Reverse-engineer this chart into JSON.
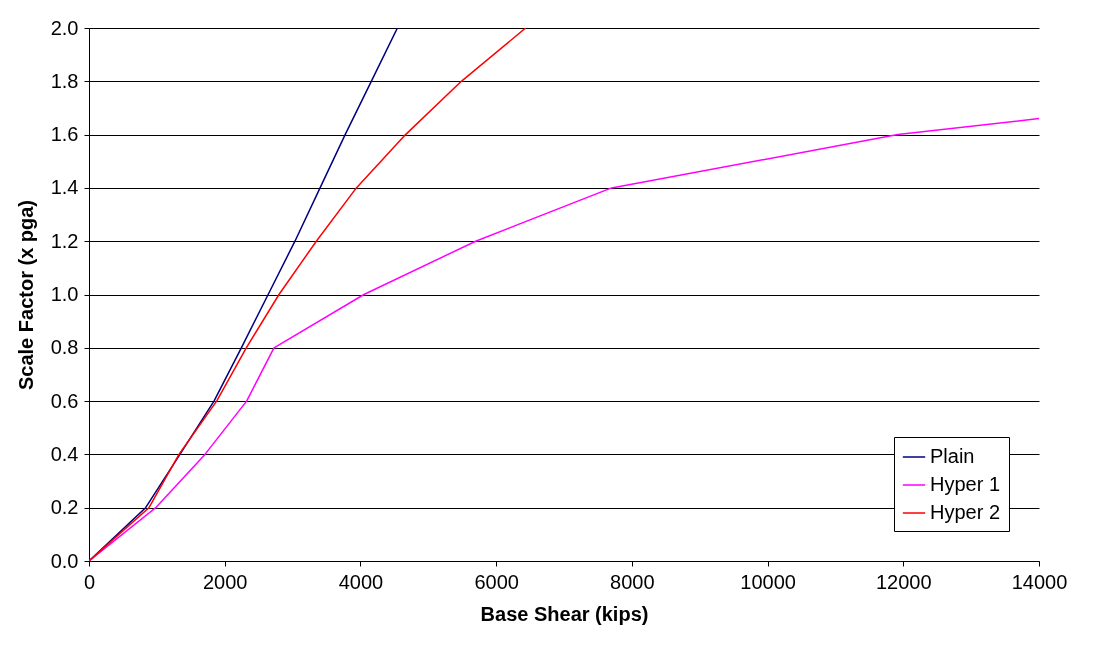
{
  "chart_data": {
    "type": "line",
    "xlabel": "Base Shear (kips)",
    "ylabel": "Scale Factor (x pga)",
    "xlim": [
      0,
      14000
    ],
    "xticks": [
      0,
      2000,
      4000,
      6000,
      8000,
      10000,
      12000,
      14000
    ],
    "ylim": [
      0,
      2
    ],
    "yticks": [
      {
        "value": 0,
        "label": "0.0"
      },
      {
        "value": 0.2,
        "label": "0.2"
      },
      {
        "value": 0.4,
        "label": "0.4"
      },
      {
        "value": 0.6,
        "label": "0.6"
      },
      {
        "value": 0.8,
        "label": "0.8"
      },
      {
        "value": 1,
        "label": "1.0"
      },
      {
        "value": 1.2,
        "label": "1.2"
      },
      {
        "value": 1.4,
        "label": "1.4"
      },
      {
        "value": 1.6,
        "label": "1.6"
      },
      {
        "value": 1.8,
        "label": "1.8"
      },
      {
        "value": 2,
        "label": "2.0"
      }
    ],
    "grid": "y",
    "legend": "bottom right",
    "marker": "none",
    "line_style": "solid",
    "series": [
      {
        "name": "Plain",
        "color": "#000080",
        "x": [
          0,
          835,
          1340,
          1842,
          2245,
          2640,
          3035,
          3405,
          3775,
          4160,
          4545
        ],
        "values": [
          0,
          0.2,
          0.4,
          0.6,
          0.8,
          1.0,
          1.2,
          1.4,
          1.6,
          1.8,
          2.0
        ]
      },
      {
        "name": "Hyper 1",
        "color": "#ff00ff",
        "x": [
          0,
          983,
          1709,
          2323,
          2726,
          4052,
          5698,
          7701,
          11920,
          14000
        ],
        "values": [
          0,
          0.2,
          0.4,
          0.6,
          0.8,
          1.0,
          1.2,
          1.4,
          1.6,
          1.66
        ]
      },
      {
        "name": "Hyper 2",
        "color": "#ff0000",
        "x": [
          0,
          884,
          1326,
          1881,
          2318,
          2800,
          3350,
          3940,
          4665,
          5487,
          6435
        ],
        "values": [
          0,
          0.2,
          0.4,
          0.6,
          0.8,
          1.0,
          1.2,
          1.4,
          1.6,
          1.8,
          2.0
        ]
      }
    ]
  }
}
